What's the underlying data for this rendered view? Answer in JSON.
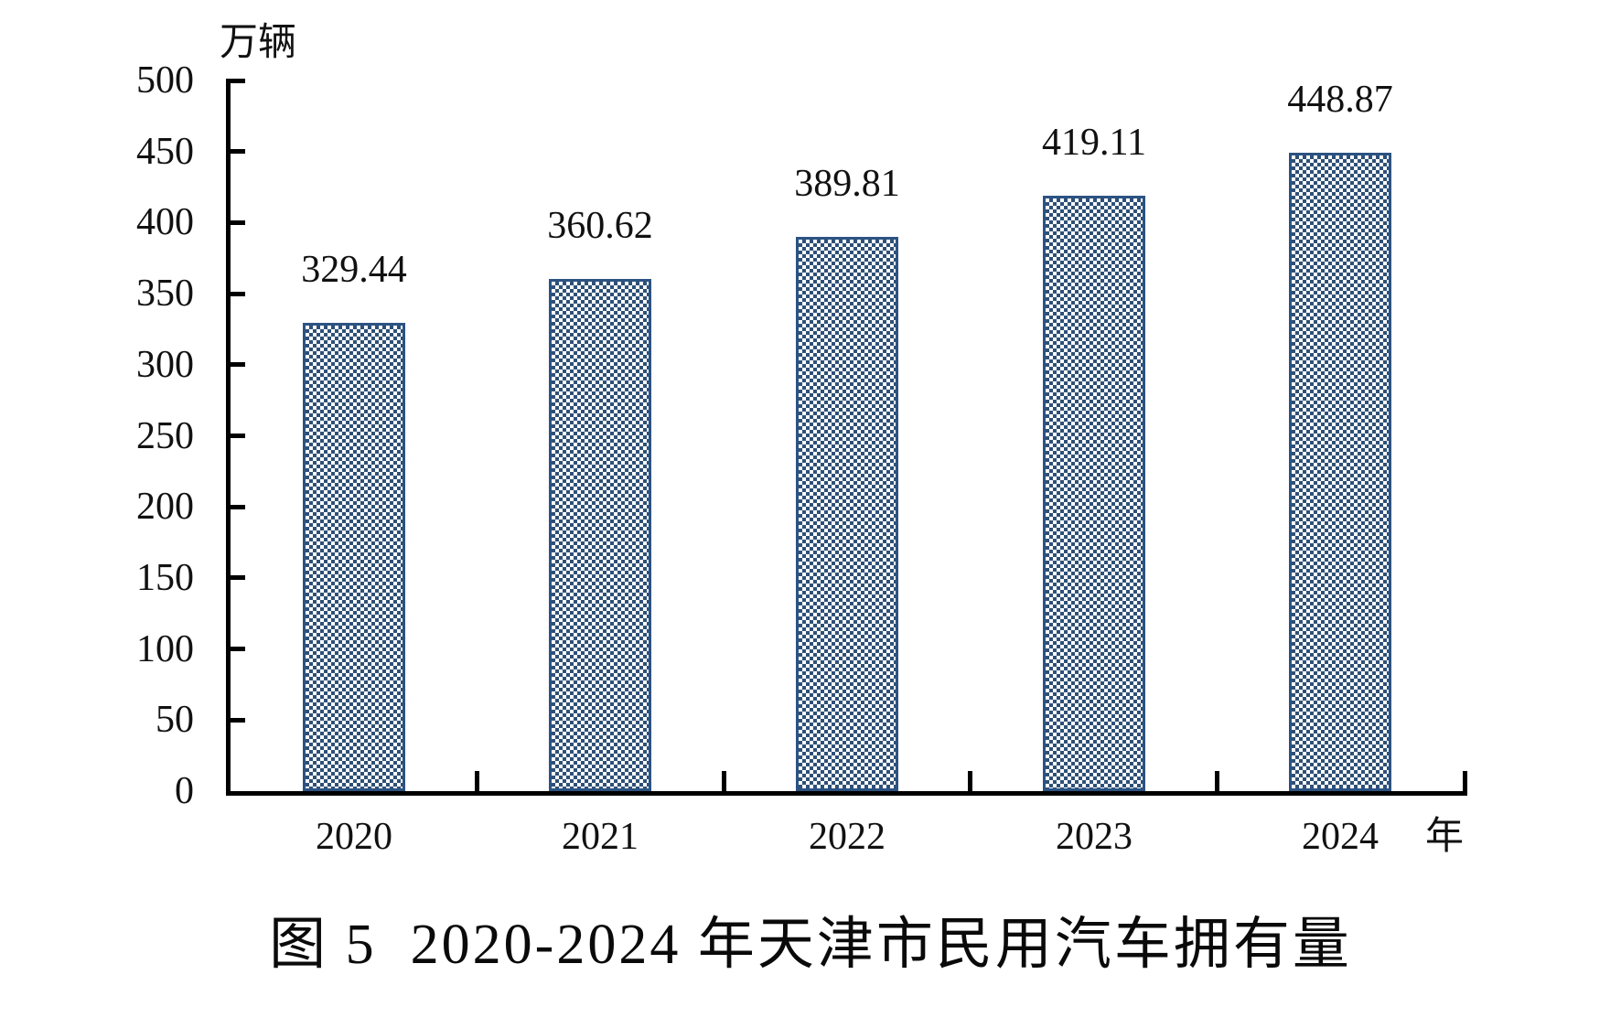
{
  "chart_data": {
    "type": "bar",
    "title": "图 5  2020-2024 年天津市民用汽车拥有量",
    "xlabel": "年",
    "ylabel": "万辆",
    "categories": [
      "2020",
      "2021",
      "2022",
      "2023",
      "2024"
    ],
    "values": [
      329.44,
      360.62,
      389.81,
      419.11,
      448.87
    ],
    "value_labels": [
      "329.44",
      "360.62",
      "389.81",
      "419.11",
      "448.87"
    ],
    "ylim": [
      0,
      500
    ],
    "y_ticks": [
      0,
      50,
      100,
      150,
      200,
      250,
      300,
      350,
      400,
      450,
      500
    ],
    "grid": false,
    "legend": null,
    "style": {
      "bar_border_color": "#2c5382",
      "bar_pattern_color": "#2e5077",
      "bar_pattern": "checkerboard",
      "axis_color": "#000000",
      "text_color": "#111111",
      "background_color": "#ffffff"
    }
  }
}
